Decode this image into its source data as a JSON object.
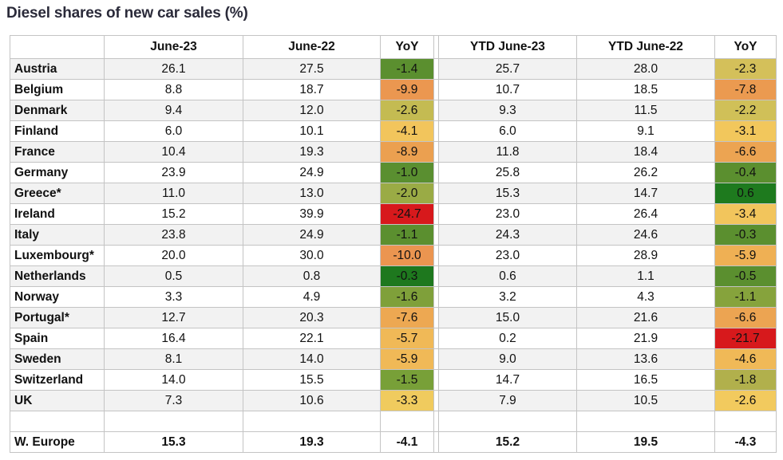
{
  "title": "Diesel shares of new car sales (%)",
  "chart_data": {
    "type": "table",
    "title": "Diesel shares of new car sales (%)",
    "columns": [
      "",
      "June-23",
      "June-22",
      "YoY",
      "YTD June-23",
      "YTD June-22",
      "YoY"
    ],
    "rows": [
      {
        "country": "Austria",
        "jun23": "26.1",
        "jun22": "27.5",
        "yoy": "-1.4",
        "yoy_color": "#5b8f2f",
        "ytd23": "25.7",
        "ytd22": "28.0",
        "ytd_yoy": "-2.3",
        "ytd_yoy_color": "#d4c05a"
      },
      {
        "country": "Belgium",
        "jun23": "8.8",
        "jun22": "18.7",
        "yoy": "-9.9",
        "yoy_color": "#eb9750",
        "ytd23": "10.7",
        "ytd22": "18.5",
        "ytd_yoy": "-7.8",
        "ytd_yoy_color": "#eb9a50"
      },
      {
        "country": "Denmark",
        "jun23": "9.4",
        "jun22": "12.0",
        "yoy": "-2.6",
        "yoy_color": "#c4bb52",
        "ytd23": "9.3",
        "ytd22": "11.5",
        "ytd_yoy": "-2.2",
        "ytd_yoy_color": "#d0c058"
      },
      {
        "country": "Finland",
        "jun23": "6.0",
        "jun22": "10.1",
        "yoy": "-4.1",
        "yoy_color": "#f2c55c",
        "ytd23": "6.0",
        "ytd22": "9.1",
        "ytd_yoy": "-3.1",
        "ytd_yoy_color": "#f2c75c"
      },
      {
        "country": "France",
        "jun23": "10.4",
        "jun22": "19.3",
        "yoy": "-8.9",
        "yoy_color": "#eba050",
        "ytd23": "11.8",
        "ytd22": "18.4",
        "ytd_yoy": "-6.6",
        "ytd_yoy_color": "#eca452"
      },
      {
        "country": "Germany",
        "jun23": "23.9",
        "jun22": "24.9",
        "yoy": "-1.0",
        "yoy_color": "#5a8f30",
        "ytd23": "25.8",
        "ytd22": "26.2",
        "ytd_yoy": "-0.4",
        "ytd_yoy_color": "#5b8f2f"
      },
      {
        "country": "Greece*",
        "jun23": "11.0",
        "jun22": "13.0",
        "yoy": "-2.0",
        "yoy_color": "#9aab45",
        "ytd23": "15.3",
        "ytd22": "14.7",
        "ytd_yoy": "0.6",
        "ytd_yoy_color": "#1e7a1e"
      },
      {
        "country": "Ireland",
        "jun23": "15.2",
        "jun22": "39.9",
        "yoy": "-24.7",
        "yoy_color": "#d7191c",
        "ytd23": "23.0",
        "ytd22": "26.4",
        "ytd_yoy": "-3.4",
        "ytd_yoy_color": "#f2c55c"
      },
      {
        "country": "Italy",
        "jun23": "23.8",
        "jun22": "24.9",
        "yoy": "-1.1",
        "yoy_color": "#5b8f2f",
        "ytd23": "24.3",
        "ytd22": "24.6",
        "ytd_yoy": "-0.3",
        "ytd_yoy_color": "#5b8f2f"
      },
      {
        "country": "Luxembourg*",
        "jun23": "20.0",
        "jun22": "30.0",
        "yoy": "-10.0",
        "yoy_color": "#eb9550",
        "ytd23": "23.0",
        "ytd22": "28.9",
        "ytd_yoy": "-5.9",
        "ytd_yoy_color": "#efb054"
      },
      {
        "country": "Netherlands",
        "jun23": "0.5",
        "jun22": "0.8",
        "yoy": "-0.3",
        "yoy_color": "#1e781e",
        "ytd23": "0.6",
        "ytd22": "1.1",
        "ytd_yoy": "-0.5",
        "ytd_yoy_color": "#5b8f2f"
      },
      {
        "country": "Norway",
        "jun23": "3.3",
        "jun22": "4.9",
        "yoy": "-1.6",
        "yoy_color": "#7fa03a",
        "ytd23": "3.2",
        "ytd22": "4.3",
        "ytd_yoy": "-1.1",
        "ytd_yoy_color": "#86a33c"
      },
      {
        "country": "Portugal*",
        "jun23": "12.7",
        "jun22": "20.3",
        "yoy": "-7.6",
        "yoy_color": "#eda852",
        "ytd23": "15.0",
        "ytd22": "21.6",
        "ytd_yoy": "-6.6",
        "ytd_yoy_color": "#eca452"
      },
      {
        "country": "Spain",
        "jun23": "16.4",
        "jun22": "22.1",
        "yoy": "-5.7",
        "yoy_color": "#f0b957",
        "ytd23": "0.2",
        "ytd22": "21.9",
        "ytd_yoy": "-21.7",
        "ytd_yoy_color": "#d7191c"
      },
      {
        "country": "Sweden",
        "jun23": "8.1",
        "jun22": "14.0",
        "yoy": "-5.9",
        "yoy_color": "#f0b957",
        "ytd23": "9.0",
        "ytd22": "13.6",
        "ytd_yoy": "-4.6",
        "ytd_yoy_color": "#f0b957"
      },
      {
        "country": "Switzerland",
        "jun23": "14.0",
        "jun22": "15.5",
        "yoy": "-1.5",
        "yoy_color": "#78a038",
        "ytd23": "14.7",
        "ytd22": "16.5",
        "ytd_yoy": "-1.8",
        "ytd_yoy_color": "#b1b04c"
      },
      {
        "country": "UK",
        "jun23": "7.3",
        "jun22": "10.6",
        "yoy": "-3.3",
        "yoy_color": "#f0cb5e",
        "ytd23": "7.9",
        "ytd22": "10.5",
        "ytd_yoy": "-2.6",
        "ytd_yoy_color": "#f2ca5e"
      }
    ],
    "total": {
      "country": "W. Europe",
      "jun23": "15.3",
      "jun22": "19.3",
      "yoy": "-4.1",
      "ytd23": "15.2",
      "ytd22": "19.5",
      "ytd_yoy": "-4.3"
    }
  }
}
